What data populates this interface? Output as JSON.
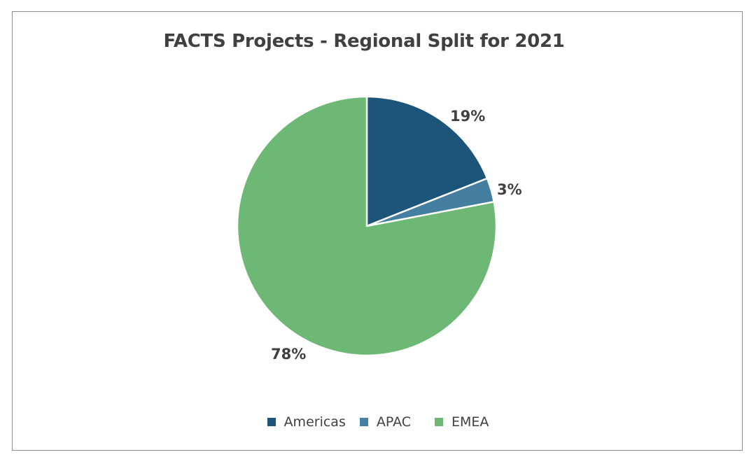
{
  "chart_data": {
    "type": "pie",
    "title": "FACTS Projects - Regional Split for 2021",
    "slices": [
      {
        "name": "Americas",
        "value": 19,
        "label": "19%",
        "color": "#1c5579"
      },
      {
        "name": "APAC",
        "value": 3,
        "label": "3%",
        "color": "#447ea0"
      },
      {
        "name": "EMEA",
        "value": 78,
        "label": "78%",
        "color": "#6db874"
      }
    ],
    "legend_position": "bottom",
    "start_angle": "12 o'clock, clockwise"
  }
}
